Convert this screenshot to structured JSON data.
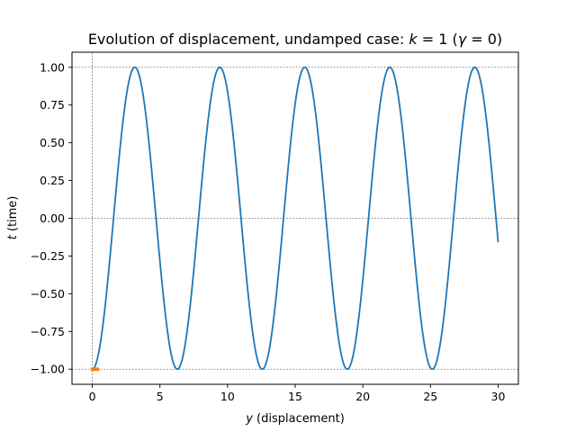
{
  "chart_data": {
    "type": "line",
    "title_prefix": "Evolution of displacement, undamped case:  ",
    "title_k_symbol": "k",
    "title_k_value": " = 1  (",
    "title_gamma_symbol": "γ",
    "title_gamma_value": " = 0)",
    "xlabel_symbol": "y",
    "xlabel_text": " (displacement)",
    "ylabel_symbol": "t",
    "ylabel_text": " (time)",
    "xlim": [
      -1.5,
      31.5
    ],
    "ylim": [
      -1.1,
      1.1
    ],
    "x_ticks": [
      0,
      5,
      10,
      15,
      20,
      25,
      30
    ],
    "x_tick_labels": [
      "0",
      "5",
      "10",
      "15",
      "20",
      "25",
      "30"
    ],
    "y_ticks": [
      -1.0,
      -0.75,
      -0.5,
      -0.25,
      0.0,
      0.25,
      0.5,
      0.75,
      1.0
    ],
    "y_tick_labels": [
      "−1.00",
      "−0.75",
      "−0.50",
      "−0.25",
      "0.00",
      "0.25",
      "0.50",
      "0.75",
      "1.00"
    ],
    "reference_lines": {
      "horizontal": [
        -1.0,
        0.0,
        1.0
      ],
      "vertical": [
        0
      ]
    },
    "series": [
      {
        "color": "#1f77b4",
        "function": "-cos(x)",
        "x_range": [
          0,
          30
        ],
        "samples": 601
      },
      {
        "color": "#ff7f0e",
        "points": [
          [
            0,
            -1.0
          ],
          [
            0.1,
            -1.0
          ],
          [
            0.2,
            -1.0
          ],
          [
            0.3,
            -1.0
          ],
          [
            0.4,
            -1.0
          ]
        ]
      }
    ],
    "grid": false,
    "legend": "none"
  }
}
